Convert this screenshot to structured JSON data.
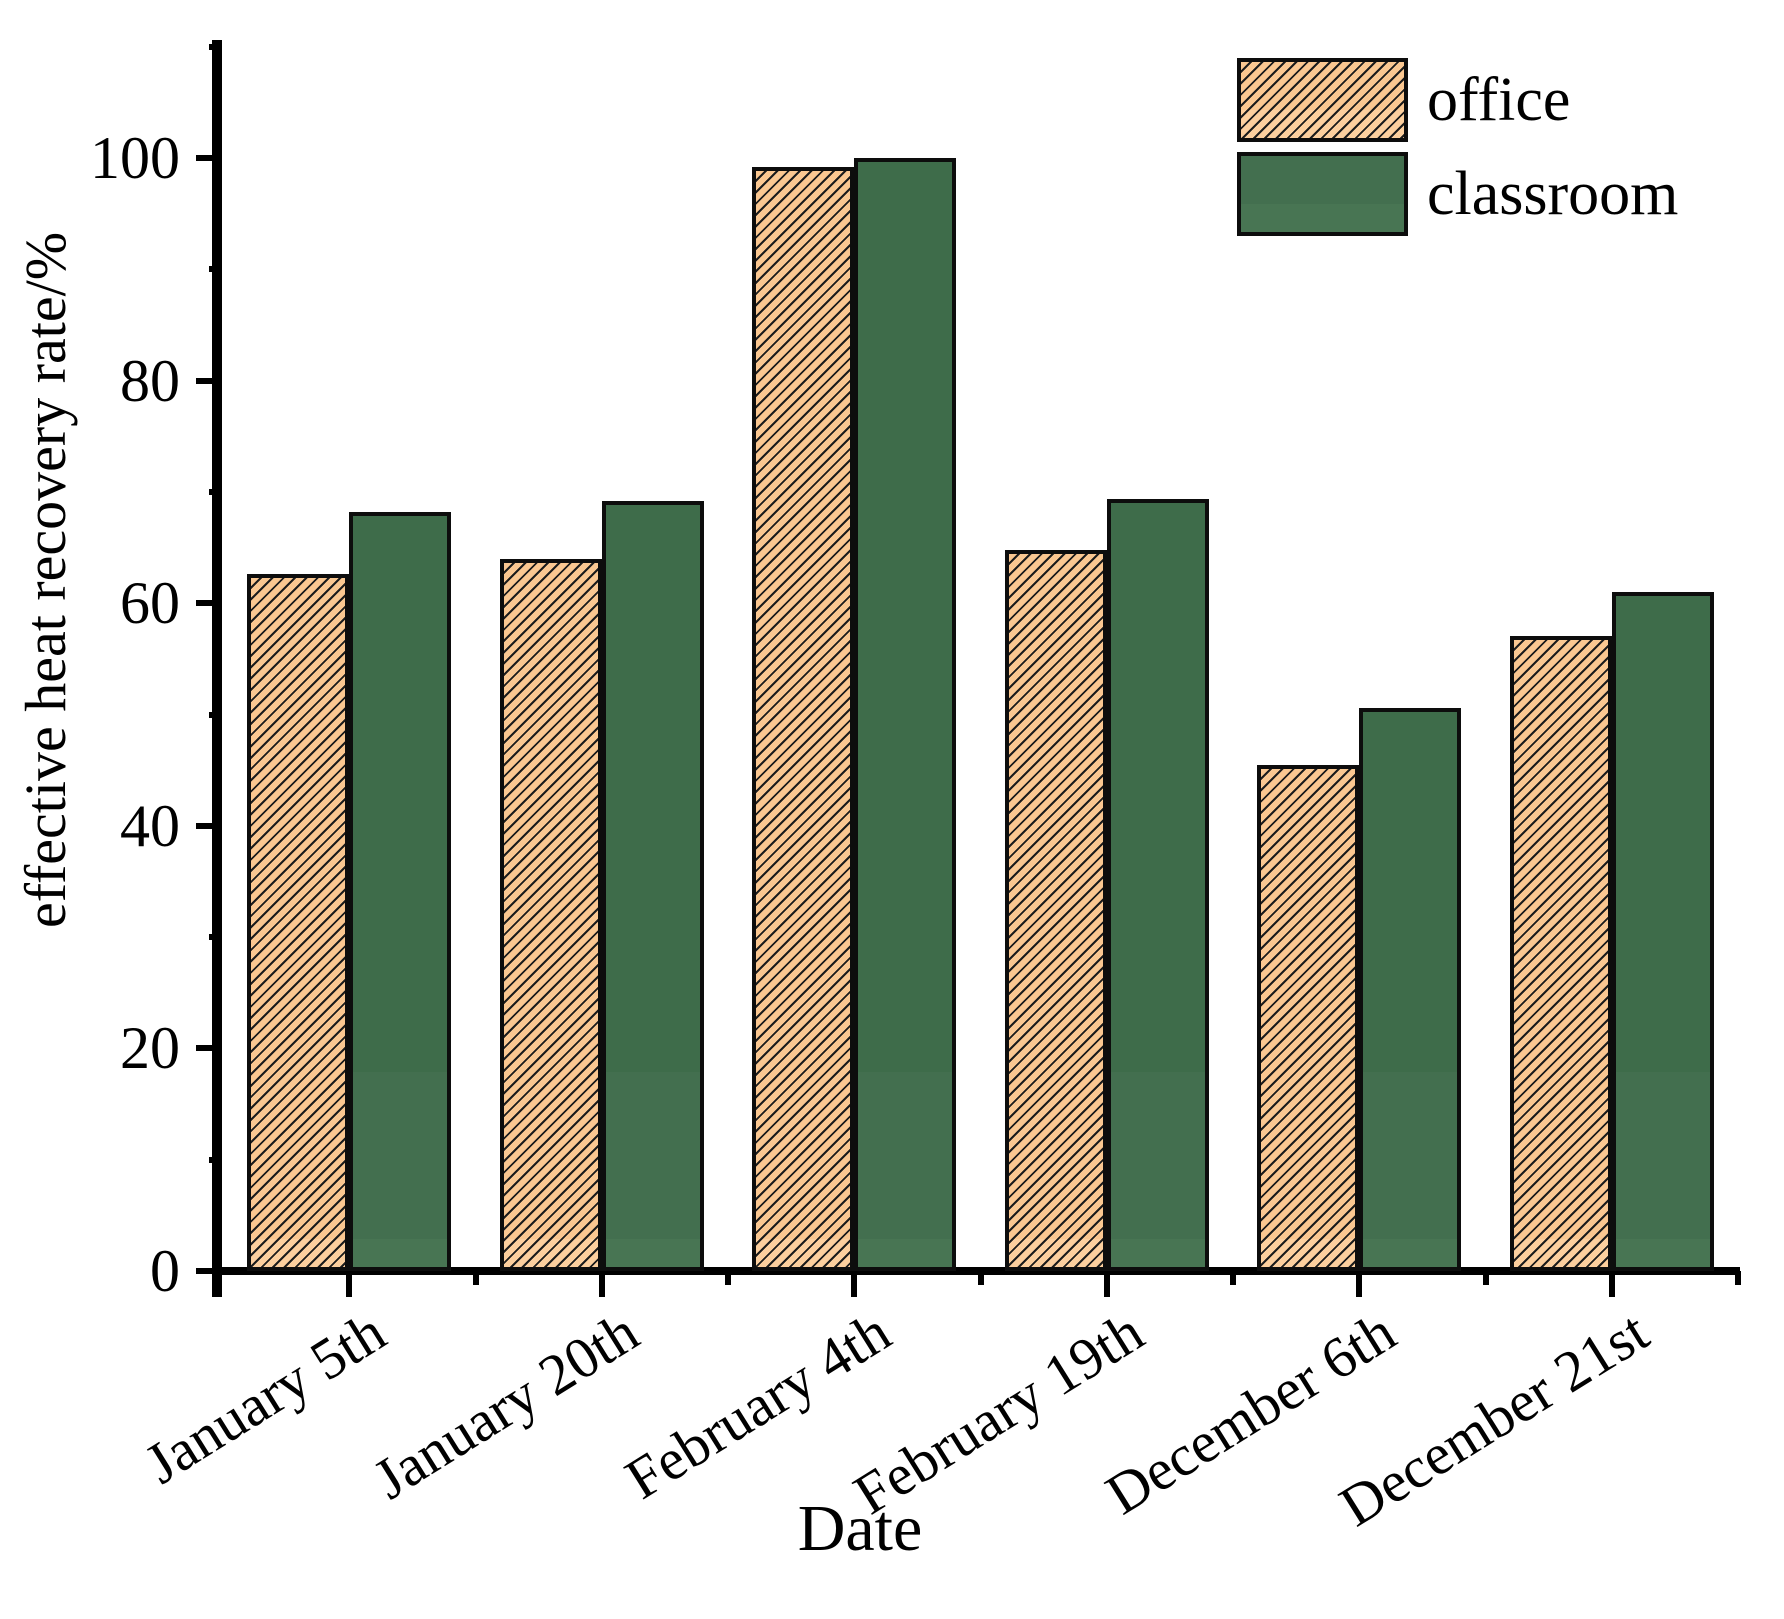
{
  "chart_data": {
    "type": "bar",
    "title": "",
    "xlabel": "Date",
    "ylabel": "effective heat recovery rate/%",
    "categories": [
      "January 5th",
      "January 20th",
      "February 4th",
      "February 19th",
      "December 6th",
      "December 21st"
    ],
    "series": [
      {
        "name": "office",
        "values": [
          62.6,
          64.0,
          99.2,
          64.8,
          45.5,
          57.1
        ]
      },
      {
        "name": "classroom",
        "values": [
          68.2,
          69.2,
          100.0,
          69.4,
          50.6,
          61.0
        ]
      }
    ],
    "ylim": [
      0,
      110
    ],
    "y_major_ticks": [
      0,
      20,
      40,
      60,
      80,
      100
    ],
    "y_minor_ticks": [
      10,
      30,
      50,
      70,
      90,
      110
    ],
    "grid": "off",
    "legend_position": "top-right",
    "legend_entries": [
      "office",
      "classroom"
    ]
  },
  "legend": {
    "office_label": "office",
    "classroom_label": "classroom"
  },
  "titles": {
    "y_axis": "effective heat recovery rate/%",
    "x_axis": "Date"
  },
  "colors": {
    "office_fill": "#FAC791",
    "office_fill_bottom_band": "#FCCF9E",
    "office_hatch": "#1c1c1c",
    "classroom_fill_top": "#3E6C4A",
    "classroom_fill_mid": "#436F4F",
    "classroom_fill_bottom_band": "#487553",
    "bar_border": "#0d0d0d",
    "axis": "#000000",
    "background": "#ffffff"
  }
}
